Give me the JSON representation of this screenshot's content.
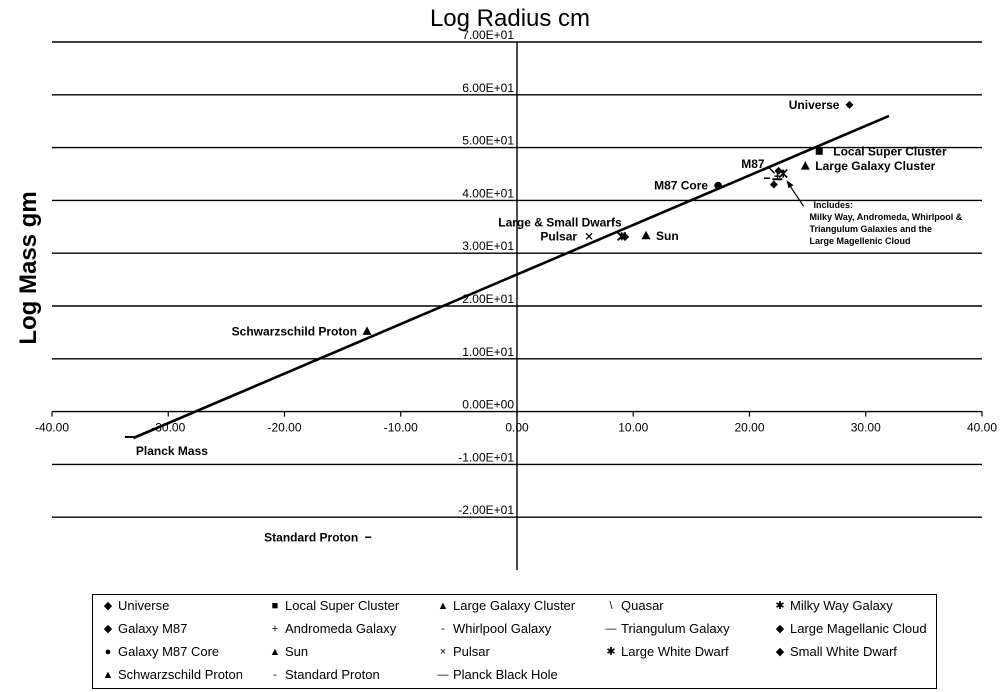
{
  "chart_data": {
    "type": "scatter",
    "title": "Log Radius cm",
    "ylabel": "Log Mass gm",
    "xlim": [
      -40,
      40
    ],
    "ylim": [
      -30,
      70
    ],
    "x_ticks": [
      -40,
      -30,
      -20,
      -10,
      0,
      10,
      20,
      30,
      40
    ],
    "x_tick_labels": [
      "-40.00",
      "-30.00",
      "-20.00",
      "-10.00",
      "0.00",
      "10.00",
      "20.00",
      "30.00",
      "40.00"
    ],
    "y_ticks": [
      70,
      60,
      50,
      40,
      30,
      20,
      10,
      0,
      -10,
      -20
    ],
    "y_tick_labels": [
      "7.00E+01",
      "6.00E+01",
      "5.00E+01",
      "4.00E+01",
      "3.00E+01",
      "2.00E+01",
      "1.00E+01",
      "0.00E+00",
      "-1.00E+01",
      "-2.00E+01"
    ],
    "grid": true,
    "legend_position": "bottom",
    "trend_line": {
      "x": [
        -33,
        32
      ],
      "y": [
        -5,
        56
      ]
    },
    "series": [
      {
        "name": "Universe",
        "symbol": "diamond",
        "points": [
          [
            28.6,
            58.1
          ]
        ]
      },
      {
        "name": "Local Super Cluster",
        "symbol": "square",
        "points": [
          [
            26.0,
            49.3
          ]
        ]
      },
      {
        "name": "Large Galaxy Cluster",
        "symbol": "triangle",
        "points": [
          [
            24.8,
            46.5
          ]
        ]
      },
      {
        "name": "Quasar",
        "symbol": "backslash",
        "points": [
          [
            21.9,
            45.7
          ]
        ]
      },
      {
        "name": "Milky Way Galaxy",
        "symbol": "star",
        "points": [
          [
            22.9,
            45.1
          ]
        ]
      },
      {
        "name": "Galaxy M87",
        "symbol": "diamond",
        "points": [
          [
            22.5,
            45.6
          ]
        ]
      },
      {
        "name": "Andromeda Galaxy",
        "symbol": "plus",
        "points": [
          [
            22.4,
            44.6
          ]
        ]
      },
      {
        "name": "Whirlpool Galaxy",
        "symbol": "dash",
        "points": [
          [
            21.5,
            44.2
          ]
        ]
      },
      {
        "name": "Triangulum Galaxy",
        "symbol": "longdash",
        "points": [
          [
            22.4,
            44.0
          ]
        ]
      },
      {
        "name": "Large Magellanic Cloud",
        "symbol": "diamond",
        "points": [
          [
            22.1,
            43.0
          ]
        ]
      },
      {
        "name": "Galaxy M87 Core",
        "symbol": "circle",
        "points": [
          [
            17.3,
            42.8
          ]
        ]
      },
      {
        "name": "Sun",
        "symbol": "triangle",
        "points": [
          [
            11.1,
            33.3
          ]
        ]
      },
      {
        "name": "Pulsar",
        "symbol": "x",
        "points": [
          [
            6.2,
            33.2
          ]
        ]
      },
      {
        "name": "Large White Dwarf",
        "symbol": "star",
        "points": [
          [
            9.0,
            33.2
          ]
        ]
      },
      {
        "name": "Small White Dwarf",
        "symbol": "diamond",
        "points": [
          [
            9.3,
            33.1
          ]
        ]
      },
      {
        "name": "Schwarzschild Proton",
        "symbol": "triangle",
        "points": [
          [
            -12.9,
            15.2
          ]
        ]
      },
      {
        "name": "Standard Proton",
        "symbol": "dash",
        "points": [
          [
            -12.8,
            -23.8
          ]
        ]
      },
      {
        "name": "Planck Black Hole",
        "symbol": "longdash",
        "points": [
          [
            -33.3,
            -4.8
          ]
        ]
      }
    ],
    "annotations": [
      {
        "text": "Universe",
        "x": 28.6,
        "y": 58.1,
        "anchor": "end"
      },
      {
        "text": "Local Super Cluster",
        "x": 26.0,
        "y": 49.3,
        "anchor": "start"
      },
      {
        "text": "M87",
        "x": 22.5,
        "y": 45.6,
        "anchor": "end"
      },
      {
        "text": "Large Galaxy Cluster",
        "x": 24.8,
        "y": 46.5,
        "anchor": "start"
      },
      {
        "text": "M87 Core",
        "x": 17.3,
        "y": 42.8,
        "anchor": "end"
      },
      {
        "text": "Large & Small Dwarfs",
        "x": 9.0,
        "y": 33.2,
        "anchor": "end"
      },
      {
        "text": "Pulsar",
        "x": 6.2,
        "y": 33.2,
        "anchor": "end"
      },
      {
        "text": "Sun",
        "x": 11.1,
        "y": 33.3,
        "anchor": "start"
      },
      {
        "text": "Schwarzschild Proton",
        "x": -12.9,
        "y": 15.2,
        "anchor": "end"
      },
      {
        "text": "Planck Mass",
        "x": -33.3,
        "y": -4.8,
        "anchor": "start"
      },
      {
        "text": "Standard Proton",
        "x": -12.8,
        "y": -23.8,
        "anchor": "end"
      }
    ],
    "includes_note": [
      "Includes:",
      "Milky Way, Andromeda, Whirlpool &",
      "Triangulum Galaxies and the",
      "Large Magellenic Cloud"
    ]
  },
  "legend": [
    {
      "label": "Universe",
      "symbol": "◆"
    },
    {
      "label": "Local Super Cluster",
      "symbol": "■"
    },
    {
      "label": "Large Galaxy Cluster",
      "symbol": "▲"
    },
    {
      "label": "Quasar",
      "symbol": "\\"
    },
    {
      "label": "Milky Way Galaxy",
      "symbol": "✱"
    },
    {
      "label": "Galaxy M87",
      "symbol": "◆"
    },
    {
      "label": "Andromeda Galaxy",
      "symbol": "+"
    },
    {
      "label": "Whirlpool Galaxy",
      "symbol": "-"
    },
    {
      "label": "Triangulum Galaxy",
      "symbol": "—"
    },
    {
      "label": "Large Magellanic Cloud",
      "symbol": "◆"
    },
    {
      "label": "Galaxy M87 Core",
      "symbol": "●"
    },
    {
      "label": "Sun",
      "symbol": "▲"
    },
    {
      "label": "Pulsar",
      "symbol": "×"
    },
    {
      "label": "Large White Dwarf",
      "symbol": "✱"
    },
    {
      "label": "Small White Dwarf",
      "symbol": "◆"
    },
    {
      "label": "Schwarzschild Proton",
      "symbol": "▲"
    },
    {
      "label": "Standard Proton",
      "symbol": "-"
    },
    {
      "label": "Planck Black Hole",
      "symbol": "—"
    }
  ]
}
